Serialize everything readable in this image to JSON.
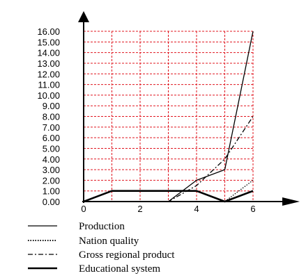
{
  "chart_data": {
    "type": "line",
    "title": "",
    "xlabel": "",
    "ylabel": "",
    "grid": true,
    "legend_position": "bottom",
    "xlim": [
      0,
      6
    ],
    "ylim": [
      0,
      16
    ],
    "x_ticks": [
      0,
      1,
      2,
      3,
      4,
      5,
      6
    ],
    "x_tick_labels": [
      "0",
      "2",
      "4",
      "6"
    ],
    "x_tick_label_values": [
      0,
      2,
      4,
      6
    ],
    "y_ticks": [
      0,
      1,
      2,
      3,
      4,
      5,
      6,
      7,
      8,
      9,
      10,
      11,
      12,
      13,
      14,
      15,
      16
    ],
    "y_tick_labels": [
      "0.00",
      "1.00",
      "2.00",
      "3.00",
      "4.00",
      "5.00",
      "6.00",
      "7.00",
      "8.00",
      "9.00",
      "10.00",
      "11.00",
      "12.00",
      "13.00",
      "14.00",
      "15.00",
      "16.00"
    ],
    "x": [
      0,
      1,
      2,
      3,
      4,
      5,
      6
    ],
    "series": [
      {
        "name": "Production",
        "style": "solid",
        "values": [
          0,
          0,
          0,
          0,
          2,
          3,
          16
        ]
      },
      {
        "name": "Nation quality",
        "style": "dotted",
        "values": [
          0,
          0,
          0,
          0,
          0,
          0,
          2
        ]
      },
      {
        "name": "Gross regional product",
        "style": "dashdot",
        "values": [
          0,
          0,
          0,
          0,
          1.5,
          4,
          8
        ]
      },
      {
        "name": "Educational system",
        "style": "thick",
        "values": [
          0,
          1,
          1,
          1,
          1,
          0,
          1
        ]
      }
    ],
    "colors": {
      "grid": "#e0141e",
      "axis": "#000000",
      "lines": "#000000"
    }
  }
}
